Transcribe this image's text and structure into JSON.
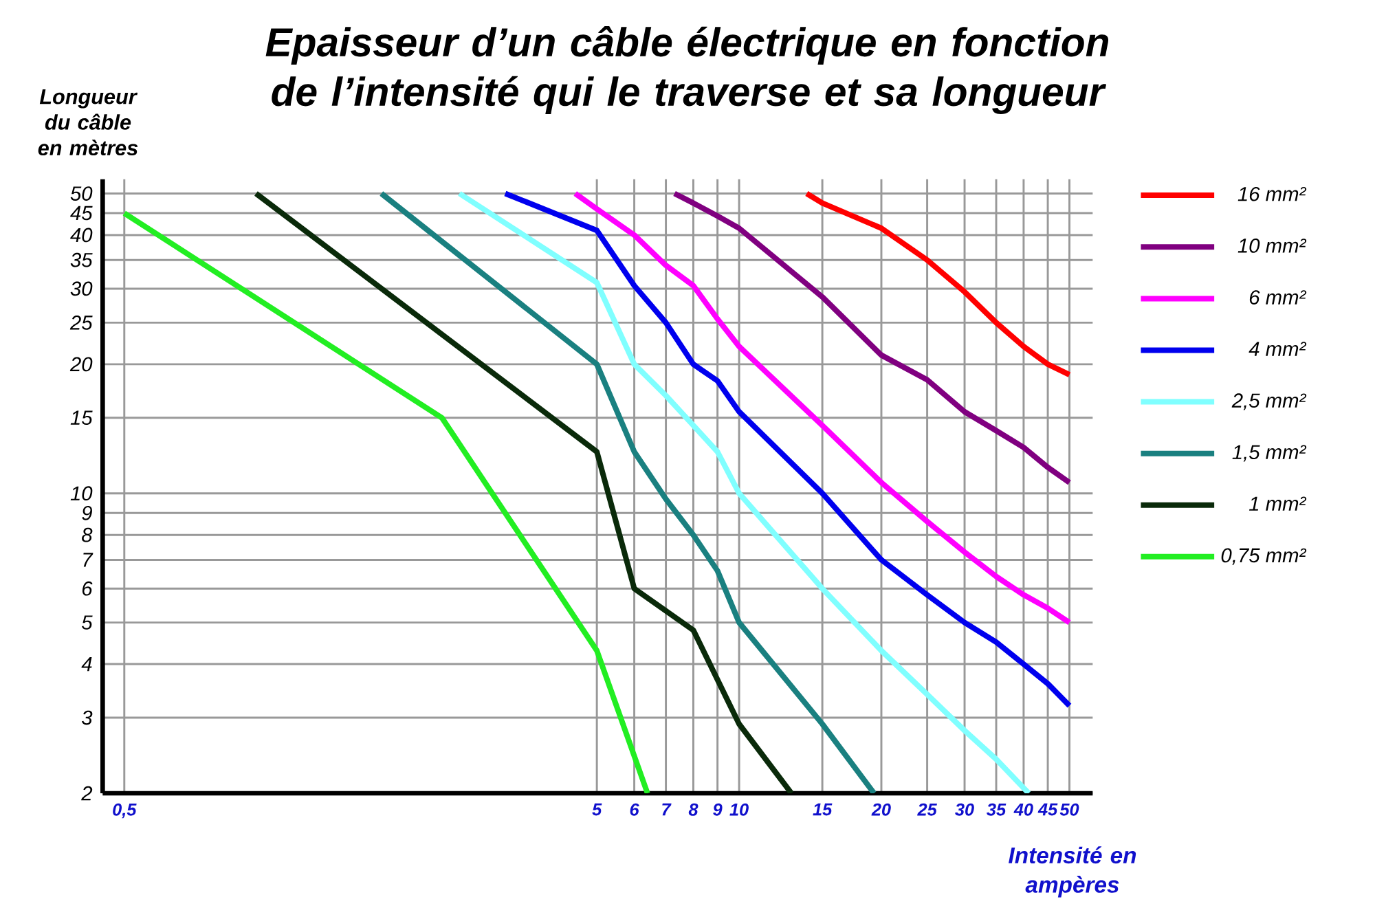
{
  "chart_data": {
    "type": "line",
    "title": "Epaisseur d’un câble électrique en fonction de l’intensité qui le traverse et  sa longueur",
    "xlabel": "Intensité en ampères",
    "ylabel": "Longueur du câble en mètres",
    "log": "xy",
    "grid": true,
    "legend": "right",
    "marker": "none",
    "line_style": "solid",
    "xlim": [
      0.45,
      56
    ],
    "ylim": [
      2,
      54
    ],
    "xticks": [
      {
        "value": 0.5,
        "label": "0,5"
      },
      5,
      6,
      7,
      8,
      9,
      10,
      15,
      20,
      25,
      30,
      35,
      40,
      45,
      50
    ],
    "yticks": [
      2,
      3,
      4,
      5,
      6,
      7,
      8,
      9,
      10,
      15,
      20,
      25,
      30,
      35,
      40,
      45,
      50
    ],
    "series": [
      {
        "name": "16 mm²",
        "color": "#ff0000",
        "x": [
          13.9,
          15,
          20,
          25,
          30,
          35,
          40,
          45,
          50
        ],
        "values": [
          50,
          47.5,
          41.5,
          35,
          29.5,
          25,
          22,
          20,
          18.9
        ]
      },
      {
        "name": "10 mm²",
        "color": "#800080",
        "x": [
          7.3,
          8,
          9,
          10,
          15,
          20,
          25,
          30,
          35,
          40,
          45,
          50
        ],
        "values": [
          50,
          47.5,
          44.3,
          41.5,
          28.7,
          21,
          18.4,
          15.5,
          14,
          12.8,
          11.5,
          10.6
        ]
      },
      {
        "name": "6 mm²",
        "color": "#ff00ff",
        "x": [
          4.5,
          5,
          6,
          7,
          8,
          9,
          10,
          15,
          20,
          25,
          30,
          35,
          40,
          45,
          50
        ],
        "values": [
          50,
          46,
          40,
          34,
          30.5,
          25.5,
          22,
          14.4,
          10.6,
          8.6,
          7.3,
          6.4,
          5.8,
          5.4,
          5
        ]
      },
      {
        "name": "4 mm²",
        "color": "#0000ee",
        "x": [
          3.2,
          5,
          6,
          7,
          8,
          9,
          10,
          15,
          20,
          25,
          30,
          35,
          40,
          45,
          50
        ],
        "values": [
          50,
          41,
          30.5,
          25,
          20,
          18.3,
          15.5,
          10,
          7,
          5.8,
          5,
          4.5,
          4,
          3.6,
          3.2
        ]
      },
      {
        "name": "2,5 mm²",
        "color": "#80ffff",
        "x": [
          2.56,
          5,
          6,
          7,
          8,
          9,
          10,
          15,
          20,
          25,
          30,
          35,
          41
        ],
        "values": [
          50,
          31,
          20,
          16.9,
          14.4,
          12.5,
          10,
          6,
          4.3,
          3.4,
          2.8,
          2.4,
          2
        ]
      },
      {
        "name": "1,5 mm²",
        "color": "#1a8080",
        "x": [
          1.75,
          5,
          6,
          7,
          8,
          9,
          10,
          15,
          19.3
        ],
        "values": [
          50,
          20,
          12.5,
          9.7,
          8,
          6.6,
          5,
          2.9,
          2
        ]
      },
      {
        "name": "1 mm²",
        "color": "#0a2a0a",
        "x": [
          0.95,
          5,
          6,
          8,
          10,
          12.9
        ],
        "values": [
          50,
          12.5,
          6,
          4.8,
          2.9,
          2
        ]
      },
      {
        "name": "0,75 mm²",
        "color": "#22ee22",
        "x": [
          0.5,
          2.35,
          5,
          6.4
        ],
        "values": [
          45,
          15,
          4.3,
          2
        ]
      }
    ]
  }
}
